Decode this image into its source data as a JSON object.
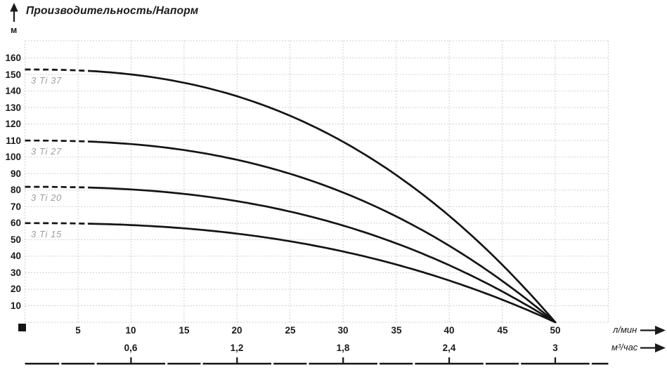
{
  "header": {
    "title": "Производительность/Напорм"
  },
  "y_axis": {
    "unit_label": "м",
    "ticks": [
      160,
      150,
      140,
      130,
      120,
      110,
      100,
      90,
      80,
      70,
      60,
      50,
      40,
      30,
      20,
      10
    ]
  },
  "x_axis_lmin": {
    "unit_label": "л/мин",
    "ticks": [
      5,
      10,
      15,
      20,
      25,
      30,
      35,
      40,
      45,
      50
    ]
  },
  "x_axis_m3h": {
    "unit_label": "м³/час",
    "ticks": [
      "0,6",
      "1,2",
      "1,8",
      "2,4",
      "3"
    ],
    "tick_values_m3h": [
      0.6,
      1.2,
      1.8,
      2.4,
      3.0
    ]
  },
  "chart_data": {
    "type": "line",
    "title": "Производительность/Напорм",
    "ylabel": "м",
    "xlabel_primary": "л/мин",
    "xlabel_secondary": "м³/час",
    "xlim": [
      0,
      55
    ],
    "ylim": [
      0,
      170
    ],
    "grid": "dotted",
    "legend_position": "inline-left-under-curve-start",
    "curve_exponent": 2.45,
    "dashed_segment_x_range": [
      0,
      6.5
    ],
    "x": [
      0,
      5,
      10,
      15,
      20,
      25,
      30,
      35,
      40,
      45,
      50
    ],
    "series": [
      {
        "name": "3 Ti 37",
        "y": [
          153,
          152.5,
          150.0,
          145.0,
          136.8,
          125.0,
          109.2,
          89.1,
          64.4,
          34.8,
          0
        ]
      },
      {
        "name": "3 Ti 27",
        "y": [
          110,
          109.6,
          107.9,
          104.2,
          98.3,
          89.9,
          78.5,
          64.1,
          46.3,
          25.0,
          0
        ]
      },
      {
        "name": "3 Ti 20",
        "y": [
          82,
          81.7,
          80.4,
          77.7,
          73.3,
          67.0,
          58.5,
          47.8,
          34.5,
          18.7,
          0
        ]
      },
      {
        "name": "3 Ti 15",
        "y": [
          60,
          59.8,
          58.8,
          56.9,
          53.6,
          49.0,
          42.8,
          35.0,
          25.3,
          13.7,
          0
        ]
      }
    ]
  },
  "colors": {
    "curve": "#141414",
    "grid": "#c9c9c9",
    "text": "#1a1a1a",
    "series_label": "#9e9e9e",
    "background": "#ffffff"
  }
}
